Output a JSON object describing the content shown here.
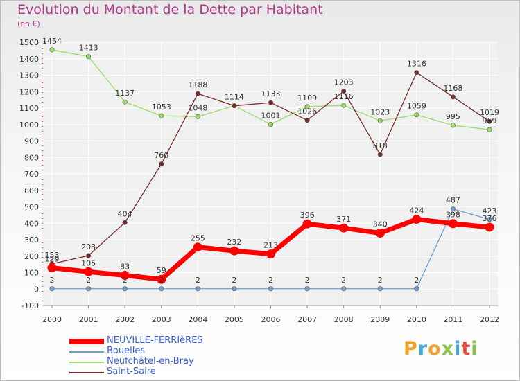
{
  "chart_data": {
    "type": "line",
    "title": "Evolution du Montant de la Dette par Habitant",
    "unit_label": "(en €)",
    "ylim": [
      -100,
      1500
    ],
    "yticks": [
      "-100",
      "0",
      "100",
      "200",
      "300",
      "400",
      "500",
      "600",
      "700",
      "800",
      "900",
      "1000",
      "1100",
      "1200",
      "1300",
      "1400",
      "1500"
    ],
    "ytick_values": [
      -100,
      0,
      100,
      200,
      300,
      400,
      500,
      600,
      700,
      800,
      900,
      1000,
      1100,
      1200,
      1300,
      1400,
      1500
    ],
    "x": [
      "2000",
      "2001",
      "2002",
      "2003",
      "2004",
      "2005",
      "2006",
      "2007",
      "2008",
      "2009",
      "2010",
      "2011",
      "2012"
    ],
    "grid": true,
    "legend_position": "bottom-left",
    "series": [
      {
        "name": "NEUVILLE-FERRIèRES",
        "color": "#ff0000",
        "values": [
          129,
          105,
          83,
          59,
          255,
          232,
          213,
          396,
          371,
          340,
          424,
          398,
          376
        ],
        "labels": [
          "129",
          "105",
          "83",
          "59",
          "255",
          "232",
          "213",
          "396",
          "371",
          "340",
          "424",
          "398",
          "376"
        ]
      },
      {
        "name": "Bouelles",
        "color": "#6a9fd0",
        "values": [
          2,
          2,
          2,
          2,
          2,
          2,
          2,
          2,
          2,
          2,
          2,
          487,
          423
        ],
        "labels": [
          "2",
          "2",
          "2",
          "2",
          "2",
          "2",
          "2",
          "2",
          "2",
          "2",
          "2",
          "487",
          "423"
        ]
      },
      {
        "name": "Neufchâtel-en-Bray",
        "color": "#9adc6a",
        "values": [
          1454,
          1413,
          1137,
          1053,
          1048,
          1114,
          1001,
          1109,
          1116,
          1023,
          1059,
          995,
          969
        ],
        "labels": [
          "1454",
          "1413",
          "1137",
          "1053",
          "1048",
          "1114",
          "1001",
          "1109",
          "1116",
          "1023",
          "1059",
          "995",
          "969"
        ]
      },
      {
        "name": "Saint-Saire",
        "color": "#7a2a2a",
        "values": [
          153,
          203,
          404,
          760,
          1188,
          1114,
          1133,
          1026,
          1203,
          818,
          1316,
          1168,
          1019
        ],
        "labels": [
          "153",
          "203",
          "404",
          "760",
          "1188",
          "1114",
          "1133",
          "1026",
          "1203",
          "818",
          "1316",
          "1168",
          "1019"
        ]
      }
    ]
  },
  "logo": {
    "letters": [
      "P",
      "r",
      "o",
      "x",
      "i",
      "t",
      "i"
    ]
  }
}
